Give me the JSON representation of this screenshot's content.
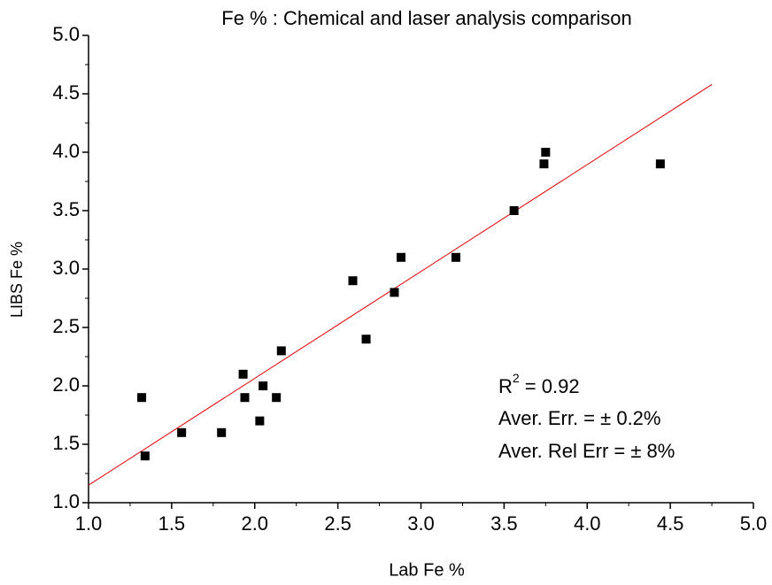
{
  "chart_data": {
    "type": "scatter",
    "title": "Fe % : Chemical and laser analysis comparison",
    "x_label": "Lab Fe %",
    "y_label": "LIBS Fe %",
    "x": [
      1.32,
      1.34,
      1.56,
      1.8,
      1.93,
      1.94,
      2.03,
      2.05,
      2.13,
      2.16,
      2.59,
      2.67,
      2.84,
      2.88,
      3.21,
      3.56,
      3.74,
      3.75,
      4.44
    ],
    "series": [
      {
        "color": "#000000",
        "values": [
          1.9,
          1.4,
          1.6,
          1.6,
          2.1,
          1.9,
          1.7,
          2.0,
          1.9,
          2.3,
          2.9,
          2.4,
          2.8,
          3.1,
          3.1,
          3.5,
          3.9,
          4.0,
          3.9
        ]
      }
    ],
    "fit": {
      "color": "#e00000",
      "x": [
        1.0,
        4.75
      ],
      "y": [
        1.15,
        4.58
      ]
    },
    "annotations": [
      [
        "R",
        "2",
        " = 0.92"
      ],
      "Aver. Err. = ± 0.2%",
      "Aver. Rel Err = ± 8%"
    ],
    "xlim": [
      1,
      5
    ],
    "ylim": [
      1,
      5
    ],
    "xticks": [
      {
        "value": 1,
        "label": "1.0"
      },
      1.5,
      {
        "value": 2,
        "label": "2.0"
      },
      2.5,
      {
        "value": 3,
        "label": "3.0"
      },
      3.5,
      {
        "value": 4,
        "label": "4.0"
      },
      4.5,
      {
        "value": 5,
        "label": "5.0"
      }
    ],
    "yticks": [
      {
        "value": 1,
        "label": "1.0"
      },
      1.5,
      {
        "value": 2,
        "label": "2.0"
      },
      2.5,
      {
        "value": 3,
        "label": "3.0"
      },
      3.5,
      {
        "value": 4,
        "label": "4.0"
      },
      4.5,
      {
        "value": 5,
        "label": "5.0"
      }
    ],
    "xminorticks": [
      1.25,
      1.75,
      2.25,
      2.75,
      3.25,
      3.75,
      4.25,
      4.75
    ],
    "yminorticks": [
      1.25,
      1.75,
      2.25,
      2.75,
      3.25,
      3.75,
      4.25,
      4.75
    ],
    "grid": false
  }
}
